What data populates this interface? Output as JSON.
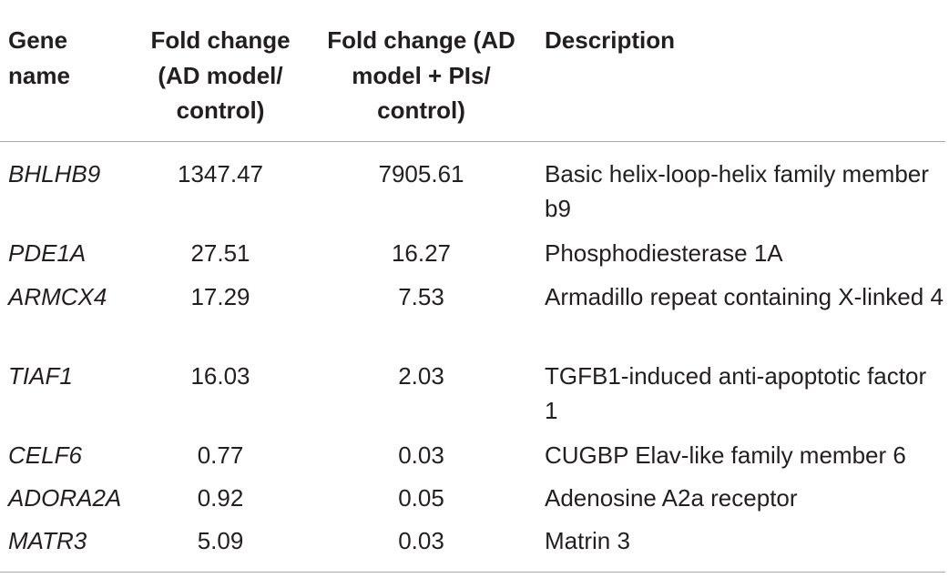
{
  "table": {
    "headers": {
      "gene": "Gene name",
      "fc_ad": "Fold change (AD model/ control)",
      "fc_ad_pis": "Fold change (AD model + PIs/ control)",
      "description": "Description"
    },
    "rows": [
      {
        "gene": "BHLHB9",
        "fc_ad": "1347.47",
        "fc_ad_pis": "7905.61",
        "description": "Basic helix-loop-helix family member b9"
      },
      {
        "gene": "PDE1A",
        "fc_ad": "27.51",
        "fc_ad_pis": "16.27",
        "description": "Phosphodiesterase 1A"
      },
      {
        "gene": "ARMCX4",
        "fc_ad": "17.29",
        "fc_ad_pis": "7.53",
        "description": "Armadillo repeat containing X-linked 4"
      },
      {
        "gene": "TIAF1",
        "fc_ad": "16.03",
        "fc_ad_pis": "2.03",
        "description": "TGFB1-induced anti-apoptotic factor 1"
      },
      {
        "gene": "CELF6",
        "fc_ad": "0.77",
        "fc_ad_pis": "0.03",
        "description": "CUGBP Elav-like family member 6"
      },
      {
        "gene": "ADORA2A",
        "fc_ad": "0.92",
        "fc_ad_pis": "0.05",
        "description": "Adenosine A2a receptor"
      },
      {
        "gene": "MATR3",
        "fc_ad": "5.09",
        "fc_ad_pis": "0.03",
        "description": "Matrin 3"
      }
    ]
  }
}
